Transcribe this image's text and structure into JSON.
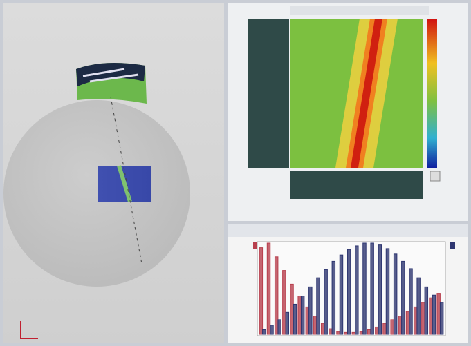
{
  "chart_data": {
    "type": "bar",
    "series": [
      {
        "color": "#b8404e",
        "values": [
          0.95,
          1.0,
          0.85,
          0.7,
          0.55,
          0.42,
          0.3,
          0.2,
          0.12,
          0.06,
          0.03,
          0.02,
          0.02,
          0.03,
          0.05,
          0.08,
          0.12,
          0.16,
          0.2,
          0.25,
          0.3,
          0.35,
          0.4,
          0.45
        ]
      },
      {
        "color": "#2e3670",
        "values": [
          0.05,
          0.1,
          0.16,
          0.24,
          0.33,
          0.42,
          0.52,
          0.62,
          0.71,
          0.8,
          0.87,
          0.93,
          0.97,
          1.0,
          1.0,
          0.98,
          0.94,
          0.88,
          0.8,
          0.72,
          0.62,
          0.52,
          0.43,
          0.35
        ]
      }
    ],
    "ylim": [
      0,
      1
    ]
  }
}
